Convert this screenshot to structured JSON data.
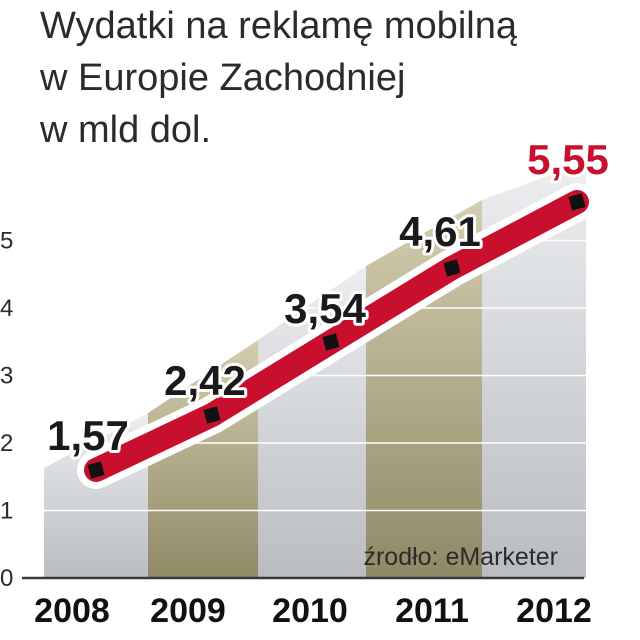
{
  "title_lines": [
    "Wydatki na reklamę mobilną",
    "w Europie Zachodniej",
    "w mld dol."
  ],
  "source": "źrodło: eMarketer",
  "colors": {
    "line": "#c8102e",
    "halo": "#ffffff",
    "marker": "#111111",
    "highlight": "#c8102e",
    "column_dark": "#9a9472",
    "column_light": "#c4c6ca"
  },
  "chart_data": {
    "type": "line",
    "x": [
      "2008",
      "2009",
      "2010",
      "2011",
      "2012"
    ],
    "series": [
      {
        "values": [
          1.57,
          2.42,
          3.54,
          4.61,
          5.55
        ]
      }
    ],
    "data_labels": [
      "1,57",
      "2,42",
      "3,54",
      "4,61",
      "5,55"
    ],
    "ylim": [
      0,
      5.5
    ],
    "yticks": [
      "0",
      "1",
      "2",
      "3",
      "4",
      "5"
    ],
    "grid": true,
    "background": "perspective columns per year, alternating light and dark"
  }
}
